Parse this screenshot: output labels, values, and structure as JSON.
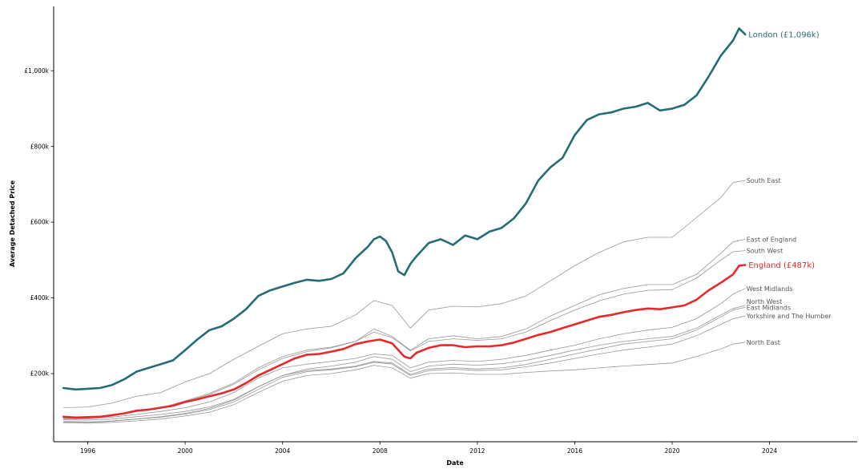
{
  "chart_data": {
    "type": "line",
    "xlabel": "Date",
    "ylabel": "Average Detached Price",
    "xlim": [
      1994.6,
      2027.6
    ],
    "ylim": [
      20,
      1170
    ],
    "x_ticks": [
      {
        "value": 1996,
        "label": "1996"
      },
      {
        "value": 2000,
        "label": "2000"
      },
      {
        "value": 2004,
        "label": "2004"
      },
      {
        "value": 2008,
        "label": "2008"
      },
      {
        "value": 2012,
        "label": "2012"
      },
      {
        "value": 2016,
        "label": "2016"
      },
      {
        "value": 2020,
        "label": "2020"
      },
      {
        "value": 2024,
        "label": "2024"
      }
    ],
    "y_ticks": [
      {
        "value": 200,
        "label": "£200k"
      },
      {
        "value": 400,
        "label": "£400k"
      },
      {
        "value": 600,
        "label": "£600k"
      },
      {
        "value": 800,
        "label": "£800k"
      },
      {
        "value": 1000,
        "label": "£1,000k"
      }
    ],
    "grid": false,
    "highlight_colors": {
      "London": "#256d74",
      "England": "#e8282b",
      "other": "#8c8c8c"
    },
    "series": [
      {
        "name": "London",
        "label": "London (£1,096k)",
        "style": "london",
        "x": [
          1995.0,
          1995.5,
          1996.0,
          1996.5,
          1997.0,
          1997.5,
          1998.0,
          1998.5,
          1999.0,
          1999.5,
          2000.0,
          2000.5,
          2001.0,
          2001.5,
          2002.0,
          2002.5,
          2003.0,
          2003.5,
          2004.0,
          2004.5,
          2005.0,
          2005.5,
          2006.0,
          2006.5,
          2007.0,
          2007.5,
          2007.75,
          2008.0,
          2008.25,
          2008.5,
          2008.75,
          2009.0,
          2009.25,
          2009.5,
          2010.0,
          2010.5,
          2011.0,
          2011.5,
          2012.0,
          2012.5,
          2013.0,
          2013.5,
          2014.0,
          2014.5,
          2015.0,
          2015.5,
          2016.0,
          2016.5,
          2017.0,
          2017.5,
          2018.0,
          2018.5,
          2019.0,
          2019.5,
          2020.0,
          2020.5,
          2021.0,
          2021.5,
          2022.0,
          2022.5,
          2022.75,
          2023.0
        ],
        "y": [
          162,
          158,
          160,
          162,
          170,
          185,
          205,
          215,
          225,
          235,
          262,
          290,
          315,
          325,
          345,
          370,
          405,
          420,
          430,
          440,
          448,
          445,
          450,
          465,
          505,
          535,
          555,
          562,
          550,
          520,
          470,
          460,
          490,
          510,
          545,
          555,
          540,
          565,
          555,
          575,
          585,
          610,
          650,
          710,
          745,
          770,
          830,
          870,
          885,
          890,
          900,
          905,
          915,
          895,
          900,
          910,
          935,
          985,
          1040,
          1080,
          1112,
          1096
        ]
      },
      {
        "name": "England",
        "label": "England (£487k)",
        "style": "england",
        "x": [
          1995.0,
          1995.5,
          1996.0,
          1996.5,
          1997.0,
          1997.5,
          1998.0,
          1998.5,
          1999.0,
          1999.5,
          2000.0,
          2000.5,
          2001.0,
          2001.5,
          2002.0,
          2002.5,
          2003.0,
          2003.5,
          2004.0,
          2004.5,
          2005.0,
          2005.5,
          2006.0,
          2006.5,
          2007.0,
          2007.5,
          2008.0,
          2008.5,
          2009.0,
          2009.25,
          2009.5,
          2010.0,
          2010.5,
          2011.0,
          2011.5,
          2012.0,
          2012.5,
          2013.0,
          2013.5,
          2014.0,
          2014.5,
          2015.0,
          2015.5,
          2016.0,
          2016.5,
          2017.0,
          2017.5,
          2018.0,
          2018.5,
          2019.0,
          2019.5,
          2020.0,
          2020.5,
          2021.0,
          2021.5,
          2022.0,
          2022.5,
          2022.75,
          2023.0
        ],
        "y": [
          86,
          84,
          85,
          86,
          90,
          95,
          102,
          105,
          110,
          115,
          125,
          132,
          140,
          148,
          158,
          175,
          195,
          210,
          225,
          240,
          250,
          252,
          258,
          265,
          278,
          285,
          290,
          280,
          245,
          240,
          255,
          268,
          275,
          275,
          270,
          272,
          272,
          275,
          282,
          292,
          302,
          310,
          320,
          330,
          340,
          350,
          355,
          362,
          368,
          372,
          370,
          375,
          380,
          395,
          420,
          440,
          462,
          485,
          487
        ]
      },
      {
        "name": "South East",
        "label": "South East",
        "style": "other",
        "x": [
          1995.0,
          1996.0,
          1997.0,
          1998.0,
          1999.0,
          2000.0,
          2001.0,
          2002.0,
          2003.0,
          2004.0,
          2005.0,
          2006.0,
          2007.0,
          2007.75,
          2008.5,
          2009.25,
          2010.0,
          2011.0,
          2012.0,
          2013.0,
          2014.0,
          2015.0,
          2016.0,
          2017.0,
          2018.0,
          2019.0,
          2020.0,
          2021.0,
          2022.0,
          2022.5,
          2023.0
        ],
        "y": [
          110,
          112,
          122,
          140,
          150,
          178,
          200,
          238,
          272,
          305,
          318,
          325,
          355,
          393,
          380,
          320,
          368,
          378,
          376,
          385,
          405,
          445,
          485,
          520,
          548,
          560,
          560,
          612,
          665,
          705,
          710
        ]
      },
      {
        "name": "East of England",
        "label": "East of England",
        "style": "other",
        "x": [
          1995.0,
          1996.0,
          1997.0,
          1998.0,
          1999.0,
          2000.0,
          2001.0,
          2002.0,
          2003.0,
          2004.0,
          2005.0,
          2006.0,
          2007.0,
          2007.75,
          2008.5,
          2009.25,
          2010.0,
          2011.0,
          2012.0,
          2013.0,
          2014.0,
          2015.0,
          2016.0,
          2017.0,
          2018.0,
          2019.0,
          2020.0,
          2021.0,
          2022.0,
          2022.5,
          2023.0
        ],
        "y": [
          82,
          82,
          88,
          100,
          108,
          126,
          145,
          172,
          210,
          240,
          258,
          268,
          285,
          318,
          298,
          262,
          292,
          300,
          292,
          298,
          318,
          352,
          380,
          408,
          425,
          435,
          435,
          462,
          518,
          548,
          555
        ]
      },
      {
        "name": "South West",
        "label": "South West",
        "style": "other",
        "x": [
          1995.0,
          1996.0,
          1997.0,
          1998.0,
          1999.0,
          2000.0,
          2001.0,
          2002.0,
          2003.0,
          2004.0,
          2005.0,
          2006.0,
          2007.0,
          2007.75,
          2008.5,
          2009.25,
          2010.0,
          2011.0,
          2012.0,
          2013.0,
          2014.0,
          2015.0,
          2016.0,
          2017.0,
          2018.0,
          2019.0,
          2020.0,
          2021.0,
          2022.0,
          2022.5,
          2023.0
        ],
        "y": [
          84,
          84,
          90,
          102,
          110,
          128,
          148,
          175,
          215,
          245,
          262,
          270,
          285,
          310,
          295,
          260,
          285,
          292,
          288,
          292,
          310,
          340,
          368,
          392,
          410,
          420,
          422,
          452,
          500,
          522,
          525
        ]
      },
      {
        "name": "West Midlands",
        "label": "West Midlands",
        "style": "other",
        "x": [
          1995.0,
          1996.0,
          1997.0,
          1998.0,
          1999.0,
          2000.0,
          2001.0,
          2002.0,
          2003.0,
          2004.0,
          2005.0,
          2006.0,
          2007.0,
          2007.75,
          2008.5,
          2009.25,
          2010.0,
          2011.0,
          2012.0,
          2013.0,
          2014.0,
          2015.0,
          2016.0,
          2017.0,
          2018.0,
          2019.0,
          2020.0,
          2021.0,
          2022.0,
          2022.5,
          2023.0
        ],
        "y": [
          80,
          80,
          85,
          92,
          100,
          110,
          125,
          150,
          188,
          215,
          225,
          232,
          240,
          252,
          248,
          215,
          230,
          235,
          232,
          238,
          248,
          262,
          275,
          292,
          305,
          315,
          322,
          345,
          385,
          410,
          425
        ]
      },
      {
        "name": "North West",
        "label": "North West",
        "style": "other",
        "x": [
          1995.0,
          1996.0,
          1997.0,
          1998.0,
          1999.0,
          2000.0,
          2001.0,
          2002.0,
          2003.0,
          2004.0,
          2005.0,
          2006.0,
          2007.0,
          2007.75,
          2008.5,
          2009.25,
          2010.0,
          2011.0,
          2012.0,
          2013.0,
          2014.0,
          2015.0,
          2016.0,
          2017.0,
          2018.0,
          2019.0,
          2020.0,
          2021.0,
          2022.0,
          2022.5,
          2023.0
        ],
        "y": [
          78,
          77,
          80,
          86,
          92,
          100,
          112,
          132,
          165,
          195,
          212,
          220,
          230,
          245,
          238,
          205,
          220,
          225,
          222,
          226,
          235,
          248,
          262,
          275,
          285,
          292,
          298,
          320,
          355,
          372,
          380
        ]
      },
      {
        "name": "East Midlands",
        "label": "East Midlands",
        "style": "other",
        "x": [
          1995.0,
          1996.0,
          1997.0,
          1998.0,
          1999.0,
          2000.0,
          2001.0,
          2002.0,
          2003.0,
          2004.0,
          2005.0,
          2006.0,
          2007.0,
          2007.75,
          2008.5,
          2009.25,
          2010.0,
          2011.0,
          2012.0,
          2013.0,
          2014.0,
          2015.0,
          2016.0,
          2017.0,
          2018.0,
          2019.0,
          2020.0,
          2021.0,
          2022.0,
          2022.5,
          2023.0
        ],
        "y": [
          72,
          71,
          74,
          80,
          86,
          95,
          108,
          130,
          165,
          195,
          208,
          212,
          220,
          232,
          228,
          198,
          212,
          216,
          212,
          215,
          224,
          238,
          252,
          265,
          278,
          285,
          292,
          315,
          350,
          368,
          375
        ]
      },
      {
        "name": "Yorkshire and The Humber",
        "label": "Yorkshire and The Humber",
        "style": "other",
        "x": [
          1995.0,
          1996.0,
          1997.0,
          1998.0,
          1999.0,
          2000.0,
          2001.0,
          2002.0,
          2003.0,
          2004.0,
          2005.0,
          2006.0,
          2007.0,
          2007.75,
          2008.5,
          2009.25,
          2010.0,
          2011.0,
          2012.0,
          2013.0,
          2014.0,
          2015.0,
          2016.0,
          2017.0,
          2018.0,
          2019.0,
          2020.0,
          2021.0,
          2022.0,
          2022.5,
          2023.0
        ],
        "y": [
          74,
          72,
          75,
          80,
          85,
          93,
          105,
          125,
          158,
          190,
          205,
          210,
          218,
          230,
          225,
          195,
          208,
          212,
          208,
          210,
          218,
          228,
          240,
          252,
          262,
          270,
          278,
          300,
          330,
          345,
          352
        ]
      },
      {
        "name": "North East",
        "label": "North East",
        "style": "other",
        "x": [
          1995.0,
          1996.0,
          1997.0,
          1998.0,
          1999.0,
          2000.0,
          2001.0,
          2002.0,
          2003.0,
          2004.0,
          2005.0,
          2006.0,
          2007.0,
          2007.75,
          2008.5,
          2009.25,
          2010.0,
          2011.0,
          2012.0,
          2013.0,
          2014.0,
          2015.0,
          2016.0,
          2017.0,
          2018.0,
          2019.0,
          2020.0,
          2021.0,
          2022.0,
          2022.5,
          2023.0
        ],
        "y": [
          70,
          69,
          71,
          75,
          80,
          88,
          98,
          118,
          150,
          180,
          195,
          200,
          210,
          222,
          215,
          188,
          200,
          202,
          198,
          198,
          203,
          207,
          210,
          215,
          220,
          224,
          228,
          245,
          265,
          278,
          283
        ]
      }
    ]
  }
}
